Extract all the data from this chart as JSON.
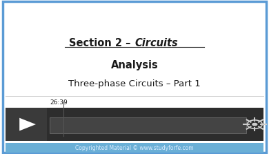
{
  "bg_color": "#ffffff",
  "border_color": "#5b9bd5",
  "border_linewidth": 2.5,
  "title_line1_normal": "Section 2 – ",
  "title_line1_italic": "Circuits",
  "title_line2": "Analysis",
  "title_line3": "Three-phase Circuits – Part 1",
  "video_bar_color": "#2d2d2d",
  "play_button_color": "#3a3a3a",
  "play_arrow_color": "#ffffff",
  "progress_bar_color": "#444444",
  "progress_bar_border": "#777777",
  "time_text": "26:39",
  "footer_bg": "#6aafd6",
  "footer_text": "Copyrighted Material © www.studyforfe.com",
  "footer_text_color": "#ddeeff",
  "gear_color": "#cccccc",
  "separator_color": "#cccccc",
  "text_color": "#1a1a1a"
}
